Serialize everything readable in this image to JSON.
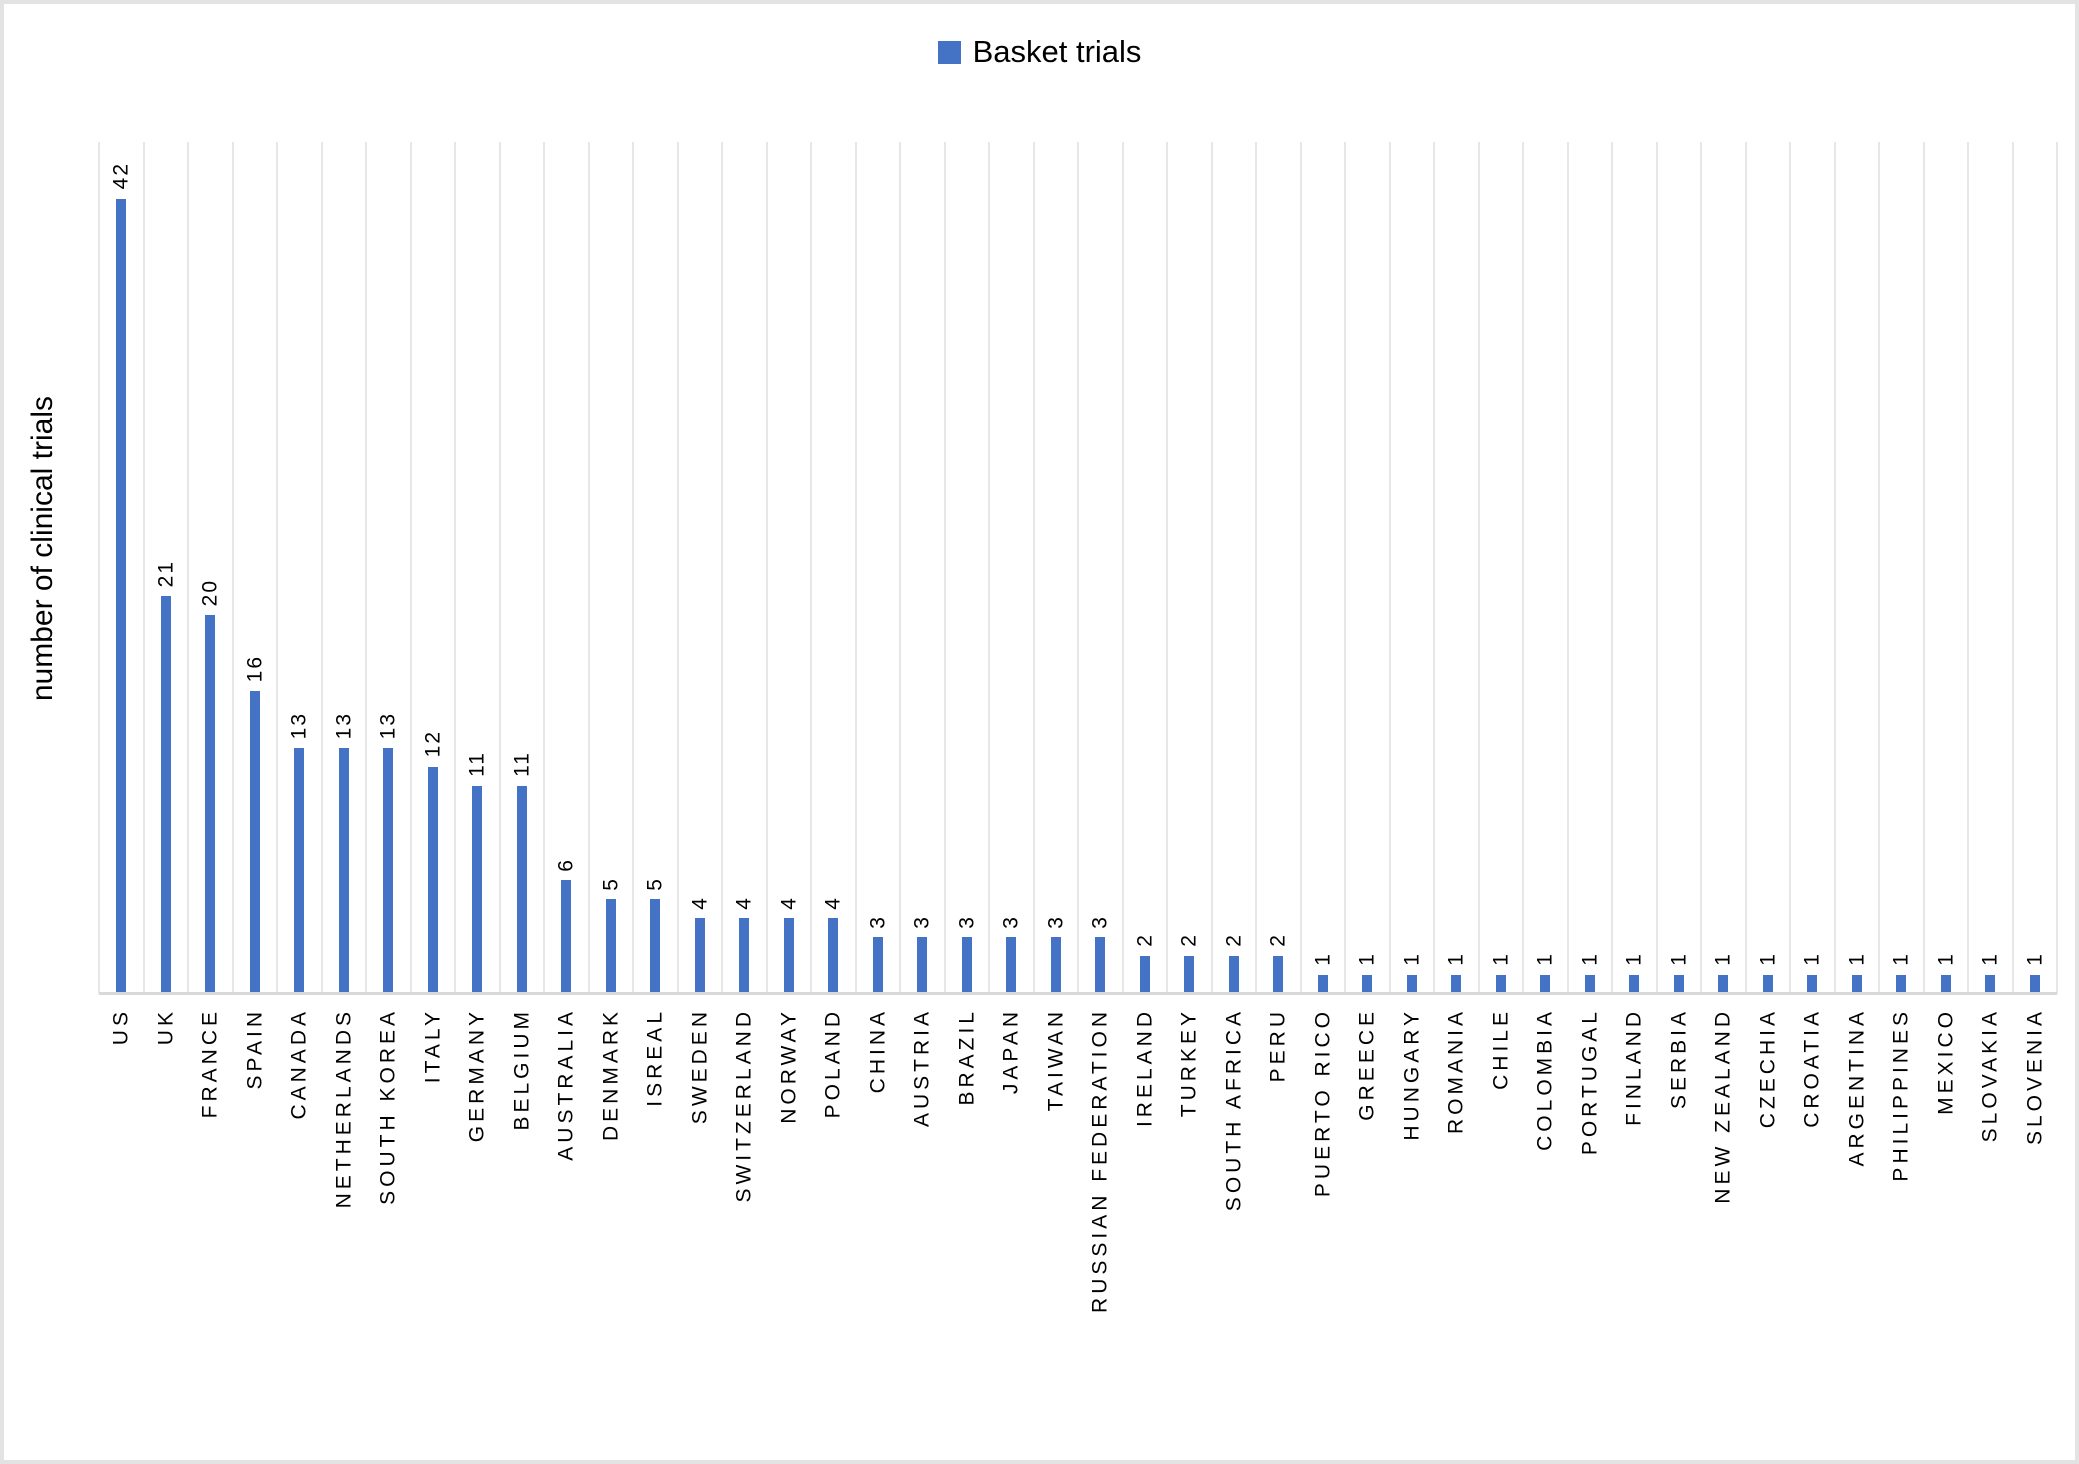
{
  "chart_data": {
    "type": "bar",
    "title": "",
    "legend": {
      "label": "Basket trials",
      "position": "top-center"
    },
    "ylabel": "number of clinical trials",
    "xlabel": "",
    "ylim": [
      0,
      45
    ],
    "grid": "vertical category-boundary gridlines only",
    "data_label_rotation": -90,
    "category_label_rotation": -90,
    "categories": [
      "US",
      "UK",
      "FRANCE",
      "SPAIN",
      "CANADA",
      "NETHERLANDS",
      "SOUTH KOREA",
      "ITALY",
      "GERMANY",
      "BELGIUM",
      "AUSTRALIA",
      "DENMARK",
      "ISREAL",
      "SWEDEN",
      "SWITZERLAND",
      "NORWAY",
      "POLAND",
      "CHINA",
      "AUSTRIA",
      "BRAZIL",
      "JAPAN",
      "TAIWAN",
      "RUSSIAN FEDERATION",
      "IRELAND",
      "TURKEY",
      "SOUTH AFRICA",
      "PERU",
      "PUERTO RICO",
      "GREECE",
      "HUNGARY",
      "ROMANIA",
      "CHILE",
      "COLOMBIA",
      "PORTUGAL",
      "FINLAND",
      "SERBIA",
      "NEW ZEALAND",
      "CZECHIA",
      "CROATIA",
      "ARGENTINA",
      "PHILIPPINES",
      "MEXICO",
      "SLOVAKIA",
      "SLOVENIA"
    ],
    "values": [
      42,
      21,
      20,
      16,
      13,
      13,
      13,
      12,
      11,
      11,
      6,
      5,
      5,
      4,
      4,
      4,
      4,
      3,
      3,
      3,
      3,
      3,
      3,
      2,
      2,
      2,
      2,
      1,
      1,
      1,
      1,
      1,
      1,
      1,
      1,
      1,
      1,
      1,
      1,
      1,
      1,
      1,
      1,
      1
    ]
  },
  "colors": {
    "bar": "#4472C4",
    "gridline": "#E7E7E7",
    "axis_line": "#D9D9D9",
    "frame_border": "#E3E3E3",
    "text": "#000000"
  }
}
